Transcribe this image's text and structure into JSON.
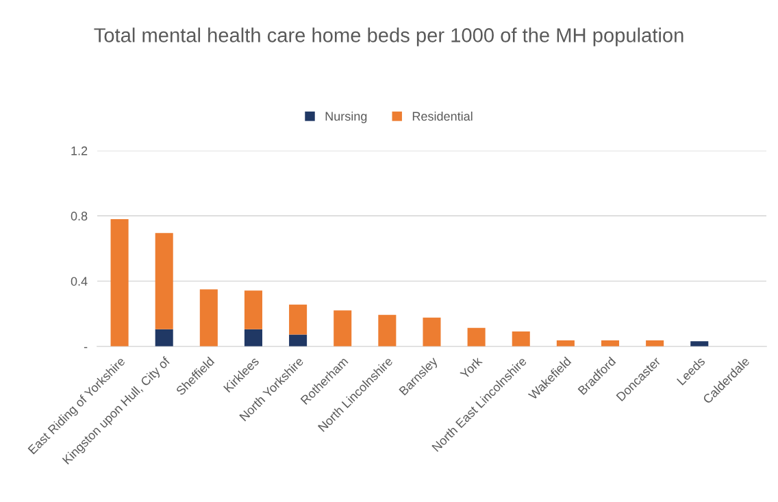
{
  "chart_data": {
    "type": "bar",
    "title": "Total mental health care home beds per 1000 of the MH population",
    "stacked": true,
    "categories": [
      "East Riding of Yorkshire",
      "Kingston upon Hull, City of",
      "Sheffield",
      "Kirklees",
      "North Yorkshire",
      "Rotherham",
      "North Lincolnshire",
      "Barnsley",
      "York",
      "North East Lincolnshire",
      "Wakefield",
      "Bradford",
      "Doncaster",
      "Leeds",
      "Calderdale"
    ],
    "series": [
      {
        "name": "Nursing",
        "color": "#203864",
        "values": [
          0,
          0.105,
          0,
          0.105,
          0.073,
          0,
          0,
          0,
          0,
          0,
          0,
          0,
          0,
          0.032,
          0
        ]
      },
      {
        "name": "Residential",
        "color": "#ed7d31",
        "values": [
          0.78,
          0.59,
          0.35,
          0.237,
          0.183,
          0.22,
          0.193,
          0.176,
          0.113,
          0.091,
          0.037,
          0.037,
          0.037,
          0,
          0
        ]
      }
    ],
    "ylim": [
      0,
      1.2
    ],
    "yticks": [
      {
        "value": 0,
        "label": "-"
      },
      0.4,
      0.8,
      1.2
    ],
    "grid": "y",
    "legend": "top"
  }
}
